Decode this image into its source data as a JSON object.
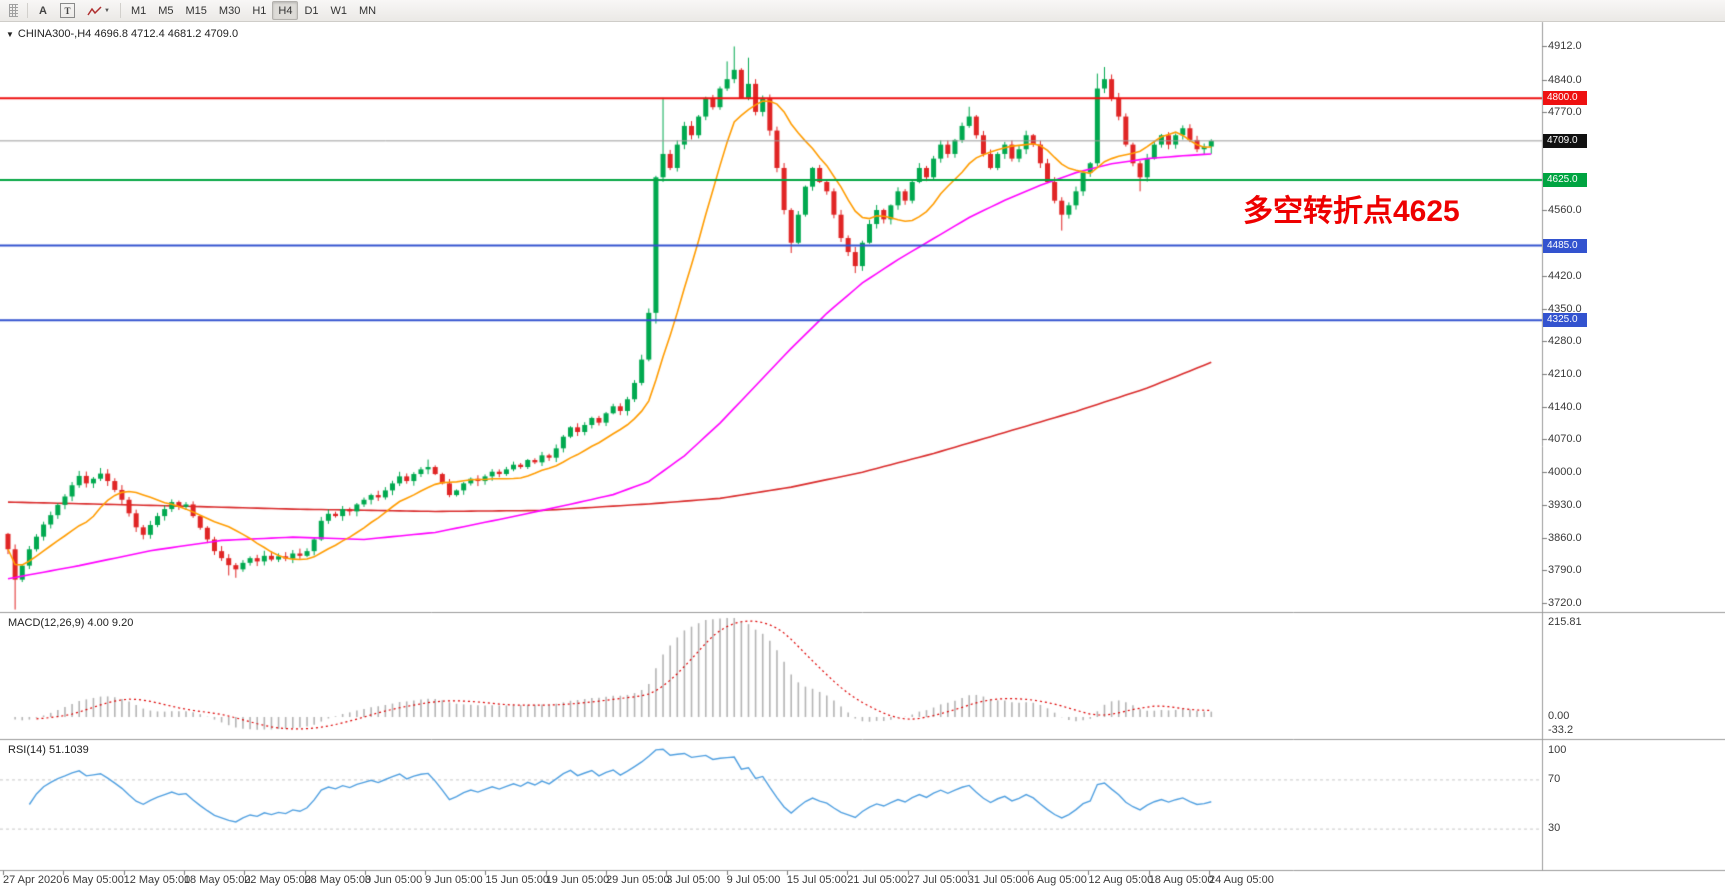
{
  "icons": {
    "caret_down": "▼",
    "symbol_marker": "▼"
  },
  "toolbar": {
    "text_tool": "A",
    "label_tool": "T",
    "timeframes": [
      {
        "label": "M1",
        "active": false
      },
      {
        "label": "M5",
        "active": false
      },
      {
        "label": "M15",
        "active": false
      },
      {
        "label": "M30",
        "active": false
      },
      {
        "label": "H1",
        "active": false
      },
      {
        "label": "H4",
        "active": true
      },
      {
        "label": "D1",
        "active": false
      },
      {
        "label": "W1",
        "active": false
      },
      {
        "label": "MN",
        "active": false
      }
    ]
  },
  "chart": {
    "symbol_label": "CHINA300-,H4 4696.8 4712.4 4681.2 4709.0",
    "annotation": {
      "text": "多空转折点4625",
      "color": "#ee0000"
    },
    "price_ticks": [
      "4912.0",
      "4840.0",
      "4770.0",
      "4560.0",
      "4420.0",
      "4350.0",
      "4280.0",
      "4210.0",
      "4140.0",
      "4070.0",
      "4000.0",
      "3930.0",
      "3860.0",
      "3790.0",
      "3720.0"
    ],
    "hlines": [
      {
        "value": 4800.0,
        "label": "4800.0",
        "color": "#ee1111",
        "badge_bg": "#ee1111",
        "width": 2
      },
      {
        "value": 4625.0,
        "label": "4625.0",
        "color": "#00a441",
        "badge_bg": "#00a441",
        "width": 2
      },
      {
        "value": 4485.0,
        "label": "4485.0",
        "color": "#3353cf",
        "badge_bg": "#3353cf",
        "width": 2
      },
      {
        "value": 4325.0,
        "label": "4325.0",
        "color": "#3353cf",
        "badge_bg": "#3353cf",
        "width": 2
      },
      {
        "value": 4709.0,
        "label": "4709.0",
        "color": "#9a9a9a",
        "badge_bg": "#111111",
        "width": 1
      }
    ]
  },
  "chart_data": {
    "type": "candlestick",
    "symbol": "CHINA300-",
    "timeframe": "H4",
    "quote": {
      "open": 4696.8,
      "high": 4712.4,
      "low": 4681.2,
      "close": 4709.0
    },
    "first_open": 3868,
    "closes": [
      3835,
      3770,
      3800,
      3835,
      3862,
      3888,
      3908,
      3930,
      3948,
      3972,
      3992,
      3976,
      3986,
      3997,
      3981,
      3962,
      3941,
      3912,
      3882,
      3866,
      3887,
      3906,
      3921,
      3936,
      3926,
      3931,
      3906,
      3881,
      3856,
      3831,
      3816,
      3801,
      3792,
      3806,
      3816,
      3809,
      3821,
      3813,
      3820,
      3815,
      3826,
      3821,
      3831,
      3856,
      3896,
      3911,
      3906,
      3921,
      3916,
      3931,
      3941,
      3951,
      3946,
      3961,
      3976,
      3991,
      3981,
      3996,
      4006,
      4011,
      3996,
      3976,
      3951,
      3961,
      3976,
      3986,
      3981,
      3991,
      4001,
      3996,
      4006,
      4016,
      4011,
      4026,
      4021,
      4036,
      4031,
      4051,
      4076,
      4096,
      4086,
      4101,
      4116,
      4106,
      4126,
      4141,
      4131,
      4156,
      4191,
      4241,
      4341,
      4631,
      4681,
      4651,
      4701,
      4741,
      4721,
      4761,
      4801,
      4781,
      4821,
      4841,
      4861,
      4801,
      4831,
      4771,
      4801,
      4731,
      4651,
      4561,
      4491,
      4551,
      4611,
      4651,
      4621,
      4601,
      4551,
      4501,
      4471,
      4441,
      4491,
      4531,
      4561,
      4541,
      4571,
      4601,
      4581,
      4621,
      4651,
      4631,
      4671,
      4701,
      4681,
      4711,
      4741,
      4761,
      4721,
      4681,
      4651,
      4681,
      4701,
      4671,
      4691,
      4721,
      4701,
      4661,
      4621,
      4581,
      4551,
      4571,
      4601,
      4641,
      4661,
      4821,
      4841,
      4801,
      4761,
      4701,
      4661,
      4631,
      4671,
      4701,
      4721,
      4701,
      4721,
      4736,
      4711,
      4691,
      4696.8,
      4709
    ],
    "wick_overrides": {
      "1": {
        "low": 3706
      },
      "13": {
        "high": 4009
      },
      "31": {
        "low": 3779
      },
      "32": {
        "low": 3774
      },
      "59": {
        "high": 4027
      },
      "91": {
        "low": 4318
      },
      "92": {
        "high": 4801
      },
      "101": {
        "high": 4879
      },
      "102": {
        "high": 4911
      },
      "104": {
        "high": 4887
      },
      "110": {
        "low": 4469
      },
      "119": {
        "low": 4426
      },
      "135": {
        "high": 4782
      },
      "148": {
        "low": 4517
      },
      "153": {
        "high": 4853
      },
      "154": {
        "high": 4867
      },
      "159": {
        "low": 4601
      },
      "169": {
        "high": 4712.4,
        "low": 4681.2
      }
    },
    "ma_orange_period": 12,
    "ma_magenta": [
      [
        0,
        3772
      ],
      [
        10,
        3800
      ],
      [
        20,
        3832
      ],
      [
        30,
        3854
      ],
      [
        40,
        3861
      ],
      [
        50,
        3856
      ],
      [
        60,
        3871
      ],
      [
        70,
        3902
      ],
      [
        78,
        3928
      ],
      [
        85,
        3952
      ],
      [
        90,
        3980
      ],
      [
        95,
        4035
      ],
      [
        100,
        4105
      ],
      [
        105,
        4185
      ],
      [
        110,
        4265
      ],
      [
        115,
        4340
      ],
      [
        120,
        4405
      ],
      [
        125,
        4455
      ],
      [
        130,
        4500
      ],
      [
        135,
        4545
      ],
      [
        140,
        4582
      ],
      [
        145,
        4614
      ],
      [
        150,
        4641
      ],
      [
        155,
        4660
      ],
      [
        160,
        4671
      ],
      [
        165,
        4677
      ],
      [
        169,
        4681
      ]
    ],
    "ma_red": [
      [
        0,
        3936
      ],
      [
        20,
        3929
      ],
      [
        40,
        3921
      ],
      [
        60,
        3916
      ],
      [
        75,
        3918
      ],
      [
        90,
        3932
      ],
      [
        100,
        3944
      ],
      [
        110,
        3968
      ],
      [
        120,
        4000
      ],
      [
        130,
        4040
      ],
      [
        140,
        4085
      ],
      [
        150,
        4130
      ],
      [
        160,
        4180
      ],
      [
        169,
        4235
      ]
    ],
    "time_labels": [
      "27 Apr 2020",
      "6 May 05:00",
      "12 May 05:00",
      "18 May 05:00",
      "22 May 05:00",
      "28 May 05:00",
      "3 Jun 05:00",
      "9 Jun 05:00",
      "15 Jun 05:00",
      "19 Jun 05:00",
      "29 Jun 05:00",
      "3 Jul 05:00",
      "9 Jul 05:00",
      "15 Jul 05:00",
      "21 Jul 05:00",
      "27 Jul 05:00",
      "31 Jul 05:00",
      "6 Aug 05:00",
      "12 Aug 05:00",
      "18 Aug 05:00",
      "24 Aug 05:00"
    ],
    "macd": {
      "label": "MACD(12,26,9) 4.00 9.20",
      "fast": 12,
      "slow": 26,
      "signal": 9,
      "values": [
        4.0,
        9.2
      ],
      "axis": [
        "215.81",
        "0.00",
        "-33.2"
      ]
    },
    "rsi": {
      "label": "RSI(14) 51.1039",
      "period": 14,
      "value": 51.1039,
      "axis": [
        "100",
        "70",
        "30"
      ],
      "levels": [
        70,
        30
      ]
    },
    "colors": {
      "up": "#00a94f",
      "down": "#e02525",
      "ma_orange": "#ff9c00",
      "ma_magenta": "#ff00ff",
      "ma_red": "#d92b2b",
      "macd_hist": "#b4b4b4",
      "macd_signal": "#dd0000",
      "rsi": "#4f9fe0"
    }
  }
}
